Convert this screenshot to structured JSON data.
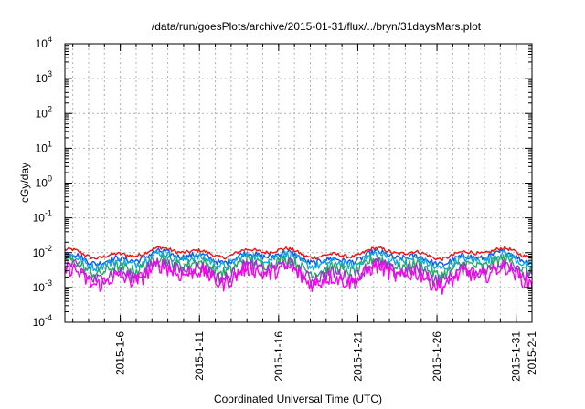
{
  "chart_data": {
    "type": "line",
    "title": "/data/run/goesPlots/archive/2015-01-31/flux/../bryn/31daysMars.plot",
    "xlabel": "Coordinated Universal Time (UTC)",
    "ylabel": "cGy/day",
    "yscale": "log",
    "ylim": [
      0.0001,
      10000
    ],
    "xlim_days": [
      2.5,
      32.0
    ],
    "grid": true,
    "y_ticks": [
      {
        "base": "10",
        "exp": "-4",
        "value": 0.0001
      },
      {
        "base": "10",
        "exp": "-3",
        "value": 0.001
      },
      {
        "base": "10",
        "exp": "-2",
        "value": 0.01
      },
      {
        "base": "10",
        "exp": "-1",
        "value": 0.1
      },
      {
        "base": "10",
        "exp": "0",
        "value": 1
      },
      {
        "base": "10",
        "exp": "1",
        "value": 10
      },
      {
        "base": "10",
        "exp": "2",
        "value": 100
      },
      {
        "base": "10",
        "exp": "3",
        "value": 1000
      },
      {
        "base": "10",
        "exp": "4",
        "value": 10000
      }
    ],
    "x_ticks": [
      {
        "label": "2015-1-6",
        "day": 6
      },
      {
        "label": "2015-1-11",
        "day": 11
      },
      {
        "label": "2015-1-16",
        "day": 16
      },
      {
        "label": "2015-1-21",
        "day": 21
      },
      {
        "label": "2015-1-26",
        "day": 26
      },
      {
        "label": "2015-1-31",
        "day": 31
      },
      {
        "label": "2015-2-1",
        "day": 32
      }
    ],
    "series": [
      {
        "name": "red",
        "color": "#ee1111",
        "base": 0.0095,
        "values": []
      },
      {
        "name": "blue",
        "color": "#1155ee",
        "base": 0.007,
        "values": []
      },
      {
        "name": "cyan",
        "color": "#11aadd",
        "base": 0.0058,
        "values": []
      },
      {
        "name": "green",
        "color": "#22aa66",
        "base": 0.004,
        "values": []
      },
      {
        "name": "purple",
        "color": "#9933cc",
        "base": 0.0028,
        "values": []
      },
      {
        "name": "magenta",
        "color": "#ff00ee",
        "base": 0.0021,
        "values": []
      }
    ]
  }
}
